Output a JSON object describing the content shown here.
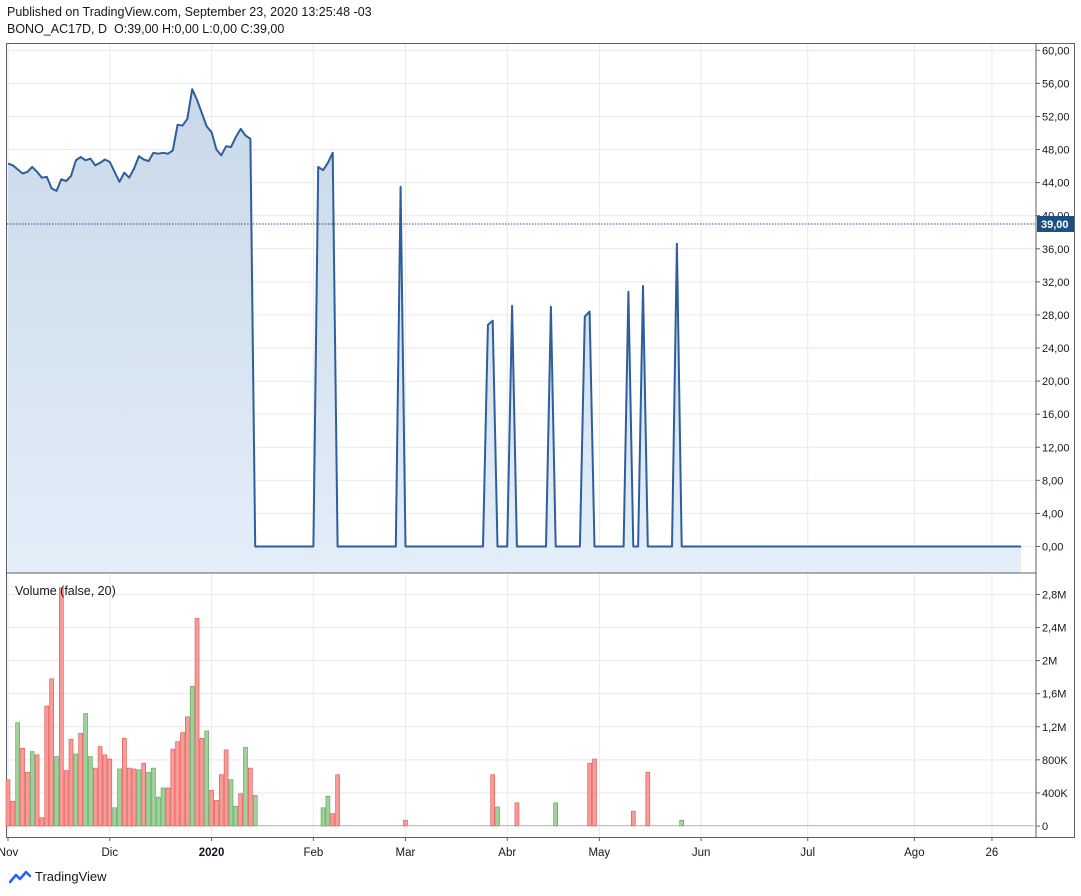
{
  "header": {
    "published": "Published on TradingView.com, September 23, 2020 13:25:48 -03",
    "symbol": "BONO_AC17D, D",
    "ohlc": [
      {
        "label": "O:",
        "value": "39,00"
      },
      {
        "label": "H:",
        "value": "0,00"
      },
      {
        "label": "L:",
        "value": "0,00"
      },
      {
        "label": "C:",
        "value": "39,00"
      }
    ]
  },
  "footer": {
    "brand": "TradingView",
    "logo_icon": "tradingview-logo-icon"
  },
  "colors": {
    "line": "#2e5f9c",
    "area_top": "#c9d8e8",
    "area_bottom": "#e3eef9",
    "vol_up": "#9ed29a",
    "vol_down": "#f99a97",
    "vol_up_edge": "#5a9e57",
    "vol_down_edge": "#d9534f",
    "grid": "#e9e9ea",
    "last_price_bg": "#1c4e80"
  },
  "chart_data": [
    {
      "type": "area",
      "title": "",
      "series_name": "BONO_AC17D, D",
      "y_ticks": [
        "0,00",
        "4,00",
        "8,00",
        "12,00",
        "16,00",
        "20,00",
        "24,00",
        "28,00",
        "32,00",
        "36,00",
        "40,00",
        "44,00",
        "48,00",
        "52,00",
        "56,00",
        "60,00"
      ],
      "ylim": [
        -3.1,
        60.5
      ],
      "last_price_label": "39,00",
      "last_price": 39,
      "x_ticks": [
        {
          "label": "Nov",
          "idx": 0
        },
        {
          "label": "Dic",
          "idx": 21
        },
        {
          "label": "2020",
          "idx": 42,
          "bold": true
        },
        {
          "label": "Feb",
          "idx": 63
        },
        {
          "label": "Mar",
          "idx": 82
        },
        {
          "label": "Abr",
          "idx": 103
        },
        {
          "label": "May",
          "idx": 122
        },
        {
          "label": "Jun",
          "idx": 143
        },
        {
          "label": "Jul",
          "idx": 165
        },
        {
          "label": "Ago",
          "idx": 187
        },
        {
          "label": "26",
          "idx": 203
        }
      ],
      "values": [
        46.3,
        46.1,
        45.6,
        45.1,
        45.3,
        45.9,
        45.3,
        44.6,
        44.7,
        43.3,
        43.0,
        44.4,
        44.2,
        44.8,
        46.7,
        47.1,
        46.7,
        46.9,
        46.1,
        46.4,
        46.8,
        46.5,
        45.3,
        44.1,
        45.2,
        44.6,
        45.7,
        47.2,
        46.8,
        46.6,
        47.6,
        47.5,
        47.6,
        47.5,
        47.9,
        51.0,
        50.9,
        51.7,
        55.3,
        54.0,
        52.4,
        50.8,
        50.1,
        48.0,
        47.3,
        48.4,
        48.3,
        49.5,
        50.5,
        49.7,
        49.3,
        0,
        0,
        0,
        0,
        0,
        0,
        0,
        0,
        0,
        0,
        0,
        0,
        0,
        45.9,
        45.5,
        46.4,
        47.6,
        0,
        0,
        0,
        0,
        0,
        0,
        0,
        0,
        0,
        0,
        0,
        0,
        0,
        43.5,
        0,
        0,
        0,
        0,
        0,
        0,
        0,
        0,
        0,
        0,
        0,
        0,
        0,
        0,
        0,
        0,
        0,
        26.8,
        27.3,
        0,
        0,
        0,
        29.1,
        0,
        0,
        0,
        0,
        0,
        0,
        0,
        29.0,
        0,
        0,
        0,
        0,
        0,
        0,
        27.8,
        28.4,
        0,
        0,
        0,
        0,
        0,
        0,
        0,
        30.8,
        0,
        0,
        31.5,
        0,
        0,
        0,
        0,
        0,
        0,
        36.6,
        0,
        0,
        0,
        0,
        0,
        0,
        0,
        0,
        0,
        0,
        0,
        0,
        0,
        0,
        0,
        0,
        0,
        0,
        0,
        0,
        0,
        0,
        0,
        0,
        0,
        0,
        0,
        0,
        0,
        0,
        0,
        0,
        0,
        0,
        0,
        0,
        0,
        0,
        0,
        0,
        0,
        0,
        0,
        0,
        0,
        0,
        0,
        0,
        0,
        0,
        0,
        0,
        0,
        0,
        0,
        0,
        0,
        0,
        0,
        0,
        0,
        0,
        0,
        0,
        0,
        0,
        0,
        0,
        0,
        0,
        0
      ]
    },
    {
      "type": "bar",
      "title": "Volume (false, 20)",
      "y_ticks": [
        "0",
        "400K",
        "800K",
        "1,2M",
        "1,6M",
        "2M",
        "2,4M",
        "2,8M"
      ],
      "ylim": [
        0,
        2900000
      ],
      "up_flags": "0010010000100010110000110001011110000010010000110101000000000000011000000000000000000000000000000100010000000000010000000000001000000000100100000000000000000000000000000000000000000000000000000000000000000000000",
      "values": [
        560000,
        300000,
        1250000,
        940000,
        650000,
        900000,
        860000,
        100000,
        1450000,
        1780000,
        840000,
        2880000,
        670000,
        1050000,
        870000,
        1120000,
        1360000,
        840000,
        700000,
        960000,
        860000,
        810000,
        220000,
        690000,
        1060000,
        700000,
        690000,
        680000,
        760000,
        650000,
        700000,
        350000,
        460000,
        460000,
        930000,
        1020000,
        1130000,
        1320000,
        1690000,
        2510000,
        1060000,
        1150000,
        430000,
        310000,
        620000,
        920000,
        560000,
        240000,
        390000,
        950000,
        700000,
        370000,
        0,
        0,
        0,
        0,
        0,
        0,
        0,
        0,
        0,
        0,
        0,
        0,
        0,
        220000,
        360000,
        150000,
        620000,
        0,
        0,
        0,
        0,
        0,
        0,
        0,
        0,
        0,
        0,
        0,
        0,
        0,
        70000,
        0,
        0,
        0,
        0,
        0,
        0,
        0,
        0,
        0,
        0,
        0,
        0,
        0,
        0,
        0,
        0,
        0,
        620000,
        230000,
        0,
        0,
        0,
        280000,
        0,
        0,
        0,
        0,
        0,
        0,
        0,
        280000,
        0,
        0,
        0,
        0,
        0,
        0,
        760000,
        810000,
        0,
        0,
        0,
        0,
        0,
        0,
        0,
        180000,
        0,
        0,
        650000,
        0,
        0,
        0,
        0,
        0,
        0,
        70000,
        0,
        0,
        0,
        0,
        0,
        0,
        0,
        0,
        0,
        0,
        0,
        0,
        0,
        0,
        0,
        0,
        0,
        0,
        0,
        0,
        0,
        0,
        0,
        0,
        0,
        0,
        0,
        0,
        0,
        0,
        0,
        0,
        0,
        0,
        0,
        0,
        0,
        0,
        0,
        0,
        0,
        0,
        0,
        0,
        0,
        0,
        0,
        0,
        0,
        0,
        0,
        0,
        0,
        0,
        0,
        0,
        0,
        0,
        0,
        0,
        0,
        0,
        0,
        0,
        0,
        0,
        0,
        0,
        0,
        0,
        0,
        0
      ]
    }
  ]
}
